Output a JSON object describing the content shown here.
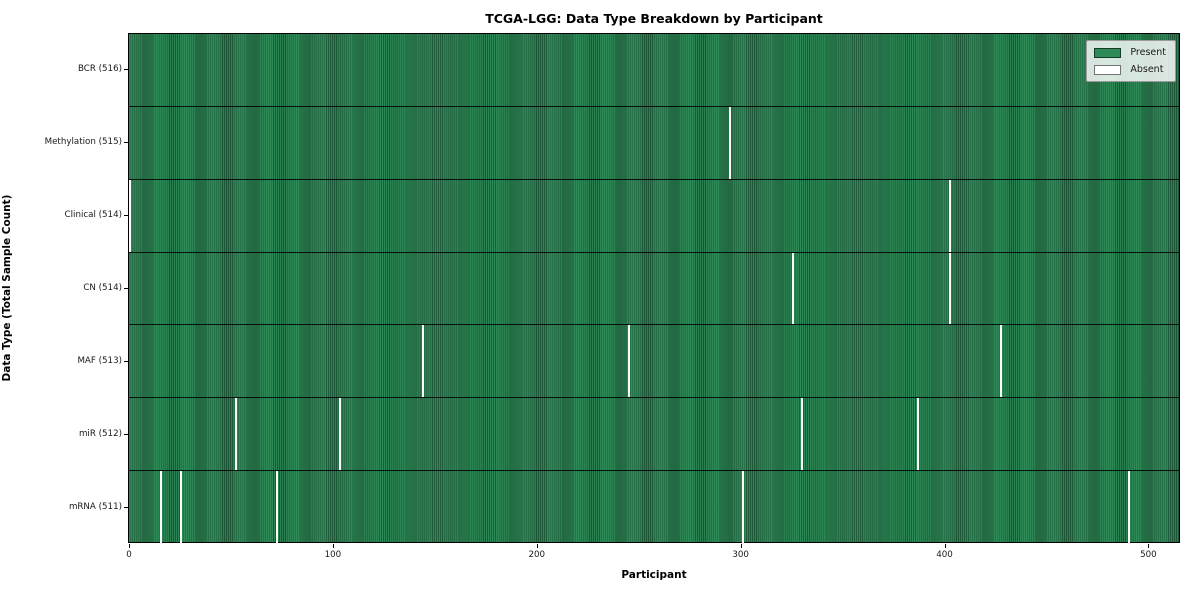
{
  "chart_data": {
    "type": "heatmap",
    "title": "TCGA-LGG: Data Type Breakdown by Participant",
    "xlabel": "Participant",
    "ylabel": "Data Type (Total Sample Count)",
    "x_ticks": [
      0,
      100,
      200,
      300,
      400,
      500
    ],
    "x_range": [
      -0.5,
      515.5
    ],
    "n_participants": 516,
    "grid": false,
    "legend_position": "upper right",
    "colors": {
      "present": "#2e8b57",
      "present_edge": "#1f5e3c",
      "absent": "#ffffff"
    },
    "legend": [
      {
        "label": "Present",
        "color": "#2e8b57"
      },
      {
        "label": "Absent",
        "color": "#ffffff"
      }
    ],
    "rows": [
      {
        "label": "BCR (516)",
        "data_type": "BCR",
        "total_samples": 516,
        "absent_participants": []
      },
      {
        "label": "Methylation (515)",
        "data_type": "Methylation",
        "total_samples": 515,
        "absent_participants": [
          295
        ]
      },
      {
        "label": "Clinical (514)",
        "data_type": "Clinical",
        "total_samples": 514,
        "absent_participants": [
          0,
          403
        ]
      },
      {
        "label": "CN (514)",
        "data_type": "CN",
        "total_samples": 514,
        "absent_participants": [
          326,
          403
        ]
      },
      {
        "label": "MAF (513)",
        "data_type": "MAF",
        "total_samples": 513,
        "absent_participants": [
          144,
          245,
          428
        ]
      },
      {
        "label": "miR (512)",
        "data_type": "miR",
        "total_samples": 512,
        "absent_participants": [
          52,
          103,
          330,
          387
        ]
      },
      {
        "label": "mRNA (511)",
        "data_type": "mRNA",
        "total_samples": 511,
        "absent_participants": [
          15,
          25,
          72,
          301,
          491
        ]
      }
    ]
  }
}
